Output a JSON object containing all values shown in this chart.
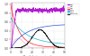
{
  "title": "",
  "xlabel": "Depth (micrometers)",
  "ylabel": "",
  "xlim": [
    0,
    50
  ],
  "ylim": [
    0,
    1.05
  ],
  "background_color": "#ffffff",
  "legend_entries": [
    "D/H",
    "OD",
    "OH",
    "D2O",
    "H2O",
    "Zirconia"
  ],
  "line_colors": [
    "#aa00cc",
    "#ffaacc",
    "#ff2222",
    "#2255dd",
    "#22bbcc",
    "#222222"
  ],
  "grid_color": "#cccccc",
  "tick_color": "#444444"
}
